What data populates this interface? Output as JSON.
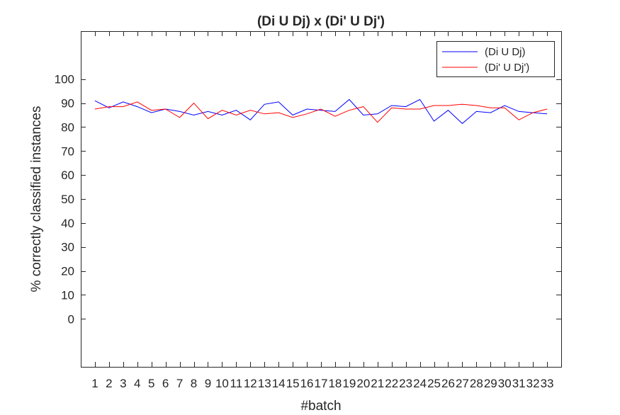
{
  "chart_data": {
    "type": "line",
    "title": "(Di U Dj) x (Di' U Dj')",
    "xlabel": "#batch",
    "ylabel": "% correctly classified instances",
    "x": [
      1,
      2,
      3,
      4,
      5,
      6,
      7,
      8,
      9,
      10,
      11,
      12,
      13,
      14,
      15,
      16,
      17,
      18,
      19,
      20,
      21,
      22,
      23,
      24,
      25,
      26,
      27,
      28,
      29,
      30,
      31,
      32,
      33
    ],
    "x_ticks": [
      "1",
      "2",
      "3",
      "4",
      "5",
      "6",
      "7",
      "8",
      "9",
      "10",
      "11",
      "12",
      "13",
      "14",
      "15",
      "16",
      "17",
      "18",
      "19",
      "20",
      "21",
      "22",
      "23",
      "24",
      "25",
      "26",
      "27",
      "28",
      "29",
      "30",
      "31",
      "32",
      "33"
    ],
    "y_ticks": [
      "0",
      "10",
      "20",
      "30",
      "40",
      "50",
      "60",
      "70",
      "80",
      "90",
      "100"
    ],
    "ylim": [
      -20,
      120
    ],
    "xlim": [
      0,
      34
    ],
    "grid": false,
    "legend_position": "top-right",
    "series": [
      {
        "name": "(Di U Dj)",
        "color": "#0000ff",
        "values": [
          91,
          88,
          90.5,
          88.5,
          86,
          87.5,
          86.5,
          85,
          86.5,
          85,
          87,
          83,
          89.5,
          90.5,
          85,
          87.5,
          87,
          86.5,
          91.5,
          85,
          85.5,
          89,
          88.5,
          91.5,
          82.5,
          87,
          81.5,
          86.5,
          86,
          89,
          86.5,
          86,
          85.5
        ]
      },
      {
        "name": "(Di' U Dj')",
        "color": "#ff0000",
        "values": [
          87.5,
          88.5,
          88.5,
          90.5,
          87,
          87.5,
          84,
          90,
          83.5,
          87,
          85,
          87,
          85.5,
          86,
          84,
          85.5,
          87.5,
          84.5,
          87,
          88.5,
          82,
          88,
          87.5,
          87.5,
          89,
          89,
          89.5,
          89,
          88,
          88,
          83,
          86,
          87.5
        ]
      }
    ]
  }
}
